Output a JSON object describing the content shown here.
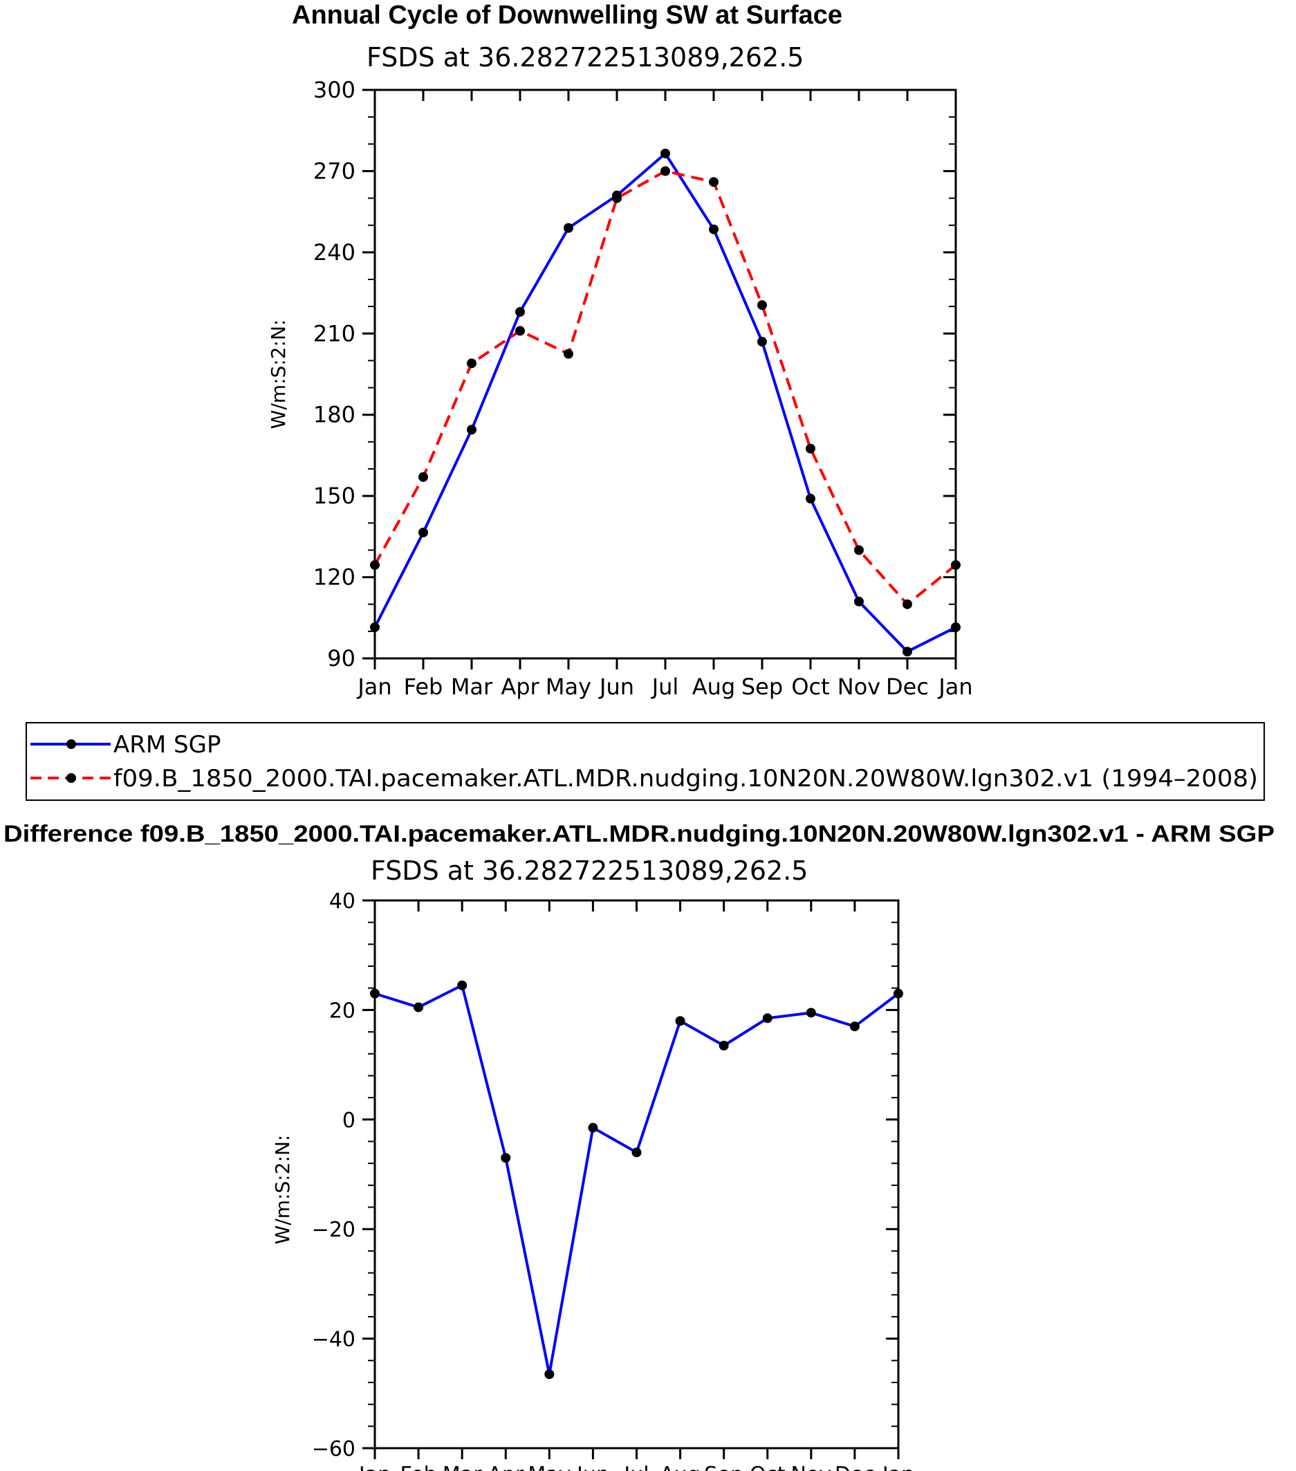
{
  "chart_data": [
    {
      "type": "line",
      "title": "Annual Cycle of Downwelling SW at Surface",
      "subtitle": "FSDS at 36.282722513089,262.5",
      "ylabel": "W/m:S:2:N:",
      "xlabel": "",
      "categories": [
        "Jan",
        "Feb",
        "Mar",
        "Apr",
        "May",
        "Jun",
        "Jul",
        "Aug",
        "Sep",
        "Oct",
        "Nov",
        "Dec",
        "Jan"
      ],
      "ylim": [
        90,
        300
      ],
      "yticks": [
        90,
        120,
        150,
        180,
        210,
        240,
        270,
        300
      ],
      "series": [
        {
          "name": "ARM SGP",
          "color": "#0000ff",
          "dash": "solid",
          "values": [
            101.5,
            136.5,
            174.5,
            218,
            249,
            261,
            276.5,
            248.5,
            207,
            149,
            111,
            92.5,
            101.5
          ]
        },
        {
          "name": "f09.B_1850_2000.TAI.pacemaker.ATL.MDR.nudging.10N20N.20W80W.lgn302.v1 (1994–2008)",
          "color": "#ff0000",
          "dash": "dashed",
          "values": [
            124.5,
            157,
            199,
            211,
            202.5,
            260,
            270,
            266,
            220.5,
            167.5,
            130,
            110,
            124.5
          ]
        }
      ]
    },
    {
      "type": "line",
      "title": "Difference f09.B_1850_2000.TAI.pacemaker.ATL.MDR.nudging.10N20N.20W80W.lgn302.v1 - ARM SGP",
      "subtitle": "FSDS at 36.282722513089,262.5",
      "ylabel": "W/m:S:2:N:",
      "xlabel": "",
      "categories": [
        "Jan",
        "Feb",
        "Mar",
        "Apr",
        "May",
        "Jun",
        "Jul",
        "Aug",
        "Sep",
        "Oct",
        "Nov",
        "Dec",
        "Jan"
      ],
      "ylim": [
        -60,
        40
      ],
      "yticks": [
        -60,
        -40,
        -20,
        0,
        20,
        40
      ],
      "ytick_labels": [
        "−60",
        "−40",
        "−20",
        "0",
        "20",
        "40"
      ],
      "series": [
        {
          "name": "Difference",
          "color": "#0000ff",
          "dash": "solid",
          "values": [
            23,
            20.5,
            24.5,
            -7,
            -46.5,
            -1.5,
            -6,
            18,
            13.5,
            18.5,
            19.5,
            17,
            23
          ]
        }
      ]
    }
  ]
}
